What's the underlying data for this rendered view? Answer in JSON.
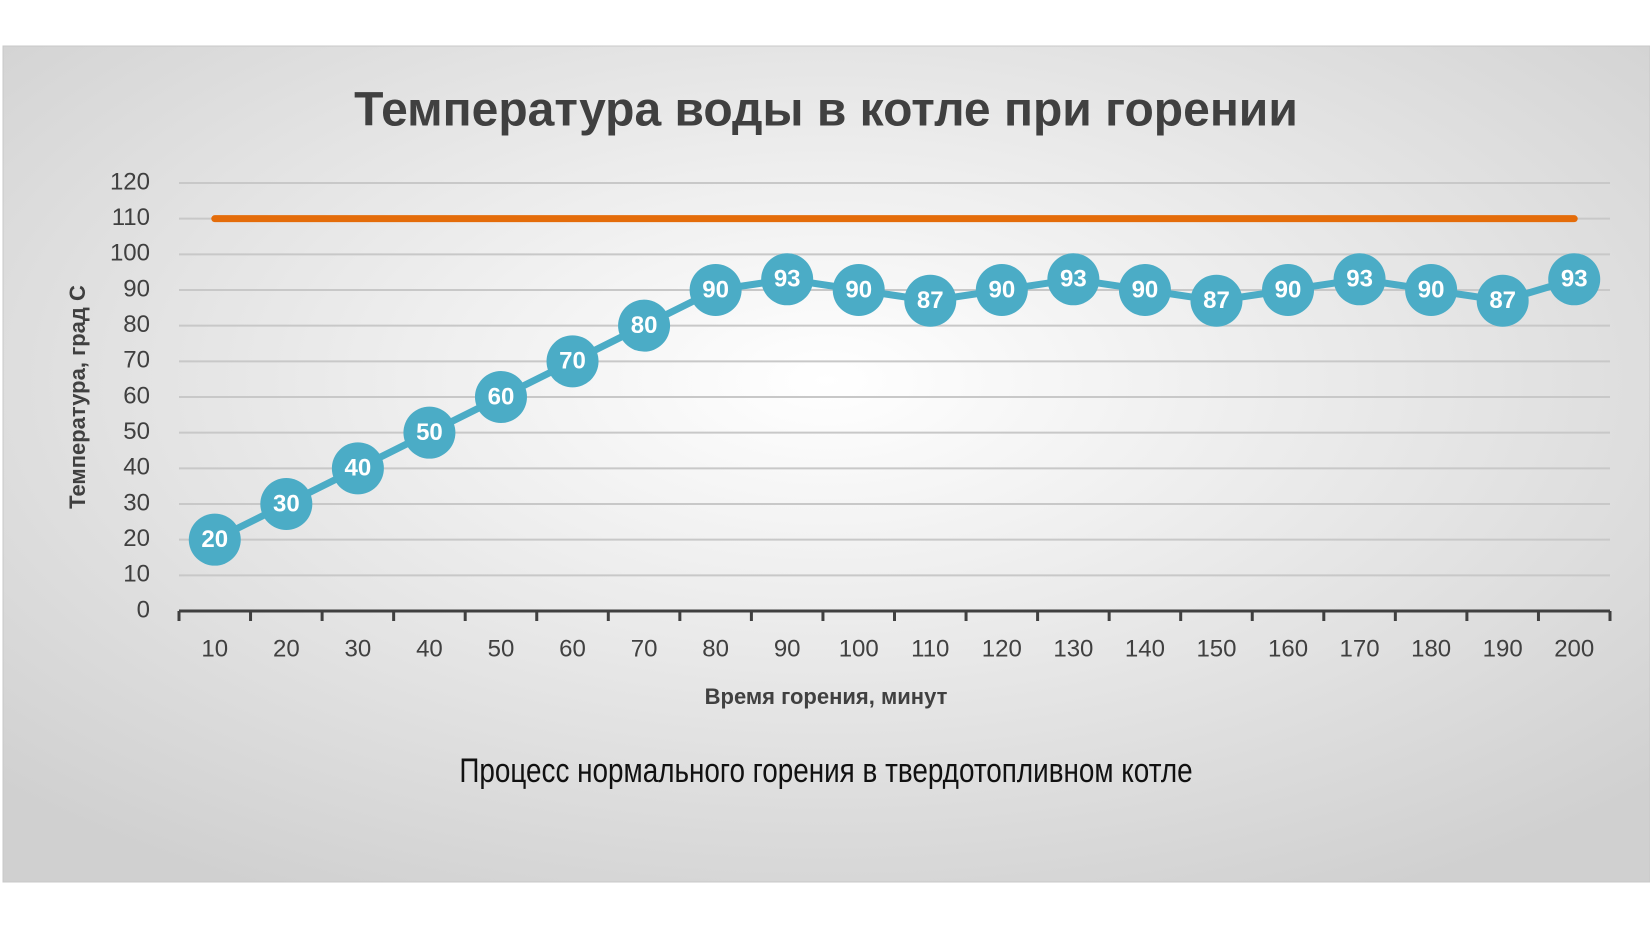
{
  "chart_data": {
    "type": "line",
    "title": "Температура воды в котле при горении",
    "x_label": "Время горения, минут",
    "y_label": "Температура, град С",
    "caption": "Процесс нормального горения в твердотопливном котле",
    "categories": [
      "10",
      "20",
      "30",
      "40",
      "50",
      "60",
      "70",
      "80",
      "90",
      "100",
      "110",
      "120",
      "130",
      "140",
      "150",
      "160",
      "170",
      "180",
      "190",
      "200"
    ],
    "series": [
      {
        "color": "#4bacc6",
        "markers": true,
        "data_labels": true,
        "values": [
          20,
          30,
          40,
          50,
          60,
          70,
          80,
          90,
          93,
          90,
          87,
          90,
          93,
          90,
          87,
          90,
          93,
          90,
          87,
          93
        ]
      },
      {
        "color": "#e46c0a",
        "markers": false,
        "data_labels": false,
        "values": [
          110,
          110,
          110,
          110,
          110,
          110,
          110,
          110,
          110,
          110,
          110,
          110,
          110,
          110,
          110,
          110,
          110,
          110,
          110,
          110
        ]
      }
    ],
    "ylim": [
      0,
      120
    ],
    "yticks": [
      0,
      10,
      20,
      30,
      40,
      50,
      60,
      70,
      80,
      90,
      100,
      110,
      120
    ],
    "grid": true
  }
}
